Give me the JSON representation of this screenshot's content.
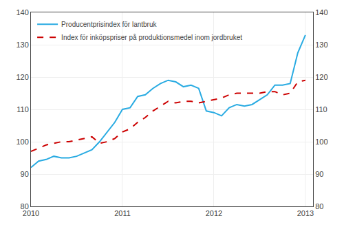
{
  "chart_data": {
    "type": "line",
    "x": [
      2010,
      2010.0833333333333,
      2010.1666666666667,
      2010.25,
      2010.3333333333333,
      2010.4166666666667,
      2010.5,
      2010.5833333333333,
      2010.6666666666667,
      2010.75,
      2010.8333333333333,
      2010.9166666666667,
      2011,
      2011.0833333333333,
      2011.1666666666667,
      2011.25,
      2011.3333333333333,
      2011.4166666666667,
      2011.5,
      2011.5833333333333,
      2011.6666666666667,
      2011.75,
      2011.8333333333333,
      2011.9166666666667,
      2012,
      2012.0833333333333,
      2012.1666666666667,
      2012.25,
      2012.3333333333333,
      2012.4166666666667,
      2012.5,
      2012.5833333333333,
      2012.6666666666667,
      2012.75,
      2012.8333333333333,
      2012.9166666666667,
      2013
    ],
    "series": [
      {
        "name": "Producentprisindex för lantbruk",
        "color": "#29ABE2",
        "line_style": "solid",
        "values": [
          92.0,
          94.0,
          94.5,
          95.5,
          95.0,
          95.0,
          95.5,
          96.5,
          97.5,
          100.0,
          103.0,
          106.0,
          110.0,
          110.5,
          114.0,
          114.5,
          116.5,
          118.0,
          119.0,
          118.5,
          117.0,
          117.5,
          116.5,
          109.5,
          109.0,
          108.0,
          110.5,
          111.5,
          111.0,
          111.5,
          113.0,
          114.5,
          117.5,
          117.5,
          118.0,
          127.5,
          133.0
        ]
      },
      {
        "name": "Index för inköpspriser på produktionsmedel inom jordbruket",
        "color": "#CC0000",
        "line_style": "dashed",
        "axis": "y2",
        "values": [
          97.0,
          98.0,
          99.0,
          99.5,
          100.0,
          100.0,
          100.5,
          101.0,
          101.5,
          99.5,
          100.0,
          101.0,
          103.0,
          104.0,
          106.0,
          107.5,
          109.5,
          111.0,
          112.5,
          112.0,
          112.5,
          112.5,
          112.0,
          112.5,
          113.0,
          113.5,
          114.5,
          115.0,
          115.0,
          115.0,
          115.0,
          115.5,
          115.5,
          114.5,
          115.0,
          118.5,
          119.0
        ]
      }
    ],
    "xlim": [
      2010,
      2013.0833333333333
    ],
    "xticks": [
      2010,
      2011,
      2012,
      2013
    ],
    "ylim": [
      80,
      140
    ],
    "yticks": [
      80,
      90,
      100,
      110,
      120,
      130,
      140
    ],
    "y2lim": [
      80,
      140
    ],
    "y2ticks": [
      80,
      90,
      100,
      110,
      120,
      130,
      140
    ],
    "grid": true,
    "legend": "upper left"
  }
}
